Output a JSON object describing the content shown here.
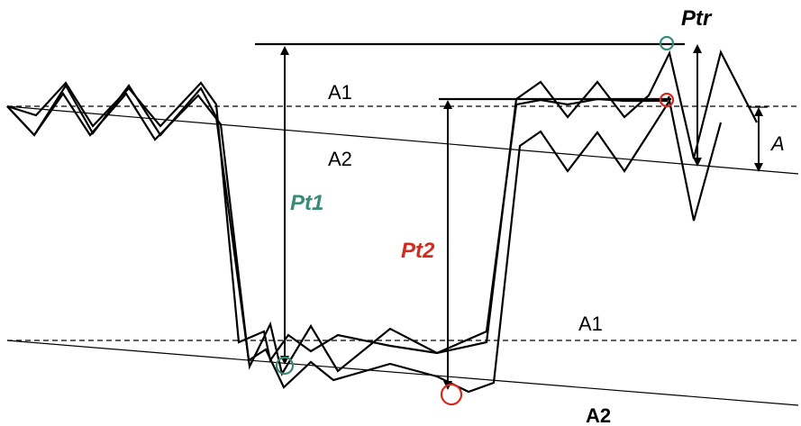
{
  "labels": {
    "a1_top": "A1",
    "a2_top": "A2",
    "a1_bottom": "A1",
    "a2_bottom": "A2",
    "pt1": "Pt1",
    "pt2": "Pt2",
    "ptr": "Ptr",
    "a": "A"
  },
  "colors": {
    "pt1": "#3a8a7a",
    "pt2": "#d42a1e",
    "line": "#000000"
  }
}
